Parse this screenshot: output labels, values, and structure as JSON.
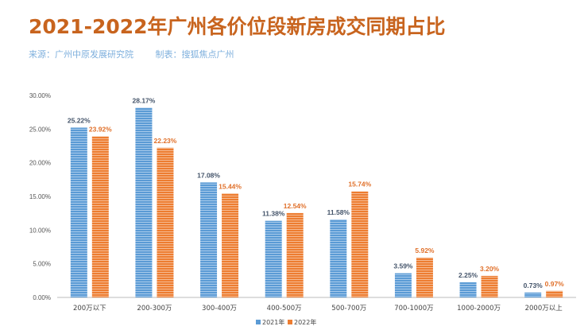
{
  "header": {
    "title": "2021-2022年广州各价位段新房成交同期占比",
    "source": "来源：广州中原发展研究院",
    "maker": "制表：搜狐焦点广州"
  },
  "chart_data": {
    "type": "bar",
    "title": "2021-2022年广州各价位段新房成交同期占比",
    "xlabel": "",
    "ylabel": "",
    "ylim": [
      0,
      30
    ],
    "yticks": [
      "0.00%",
      "5.00%",
      "10.00%",
      "15.00%",
      "20.00%",
      "25.00%",
      "30.00%"
    ],
    "categories": [
      "200万以下",
      "200-300万",
      "300-400万",
      "400-500万",
      "500-700万",
      "700-1000万",
      "1000-2000万",
      "2000万以上"
    ],
    "series": [
      {
        "name": "2021年",
        "color": "#5b9bd5",
        "values": [
          25.22,
          28.17,
          17.08,
          11.38,
          11.58,
          3.59,
          2.25,
          0.73
        ],
        "labels": [
          "25.22%",
          "28.17%",
          "17.08%",
          "11.38%",
          "11.58%",
          "3.59%",
          "2.25%",
          "0.73%"
        ]
      },
      {
        "name": "2022年",
        "color": "#ed7d31",
        "values": [
          23.92,
          22.23,
          15.44,
          12.54,
          15.74,
          5.92,
          3.2,
          0.97
        ],
        "labels": [
          "23.92%",
          "22.23%",
          "15.44%",
          "12.54%",
          "15.74%",
          "5.92%",
          "3.20%",
          "0.97%"
        ]
      }
    ],
    "grid": false,
    "legend": "bottom-center"
  }
}
